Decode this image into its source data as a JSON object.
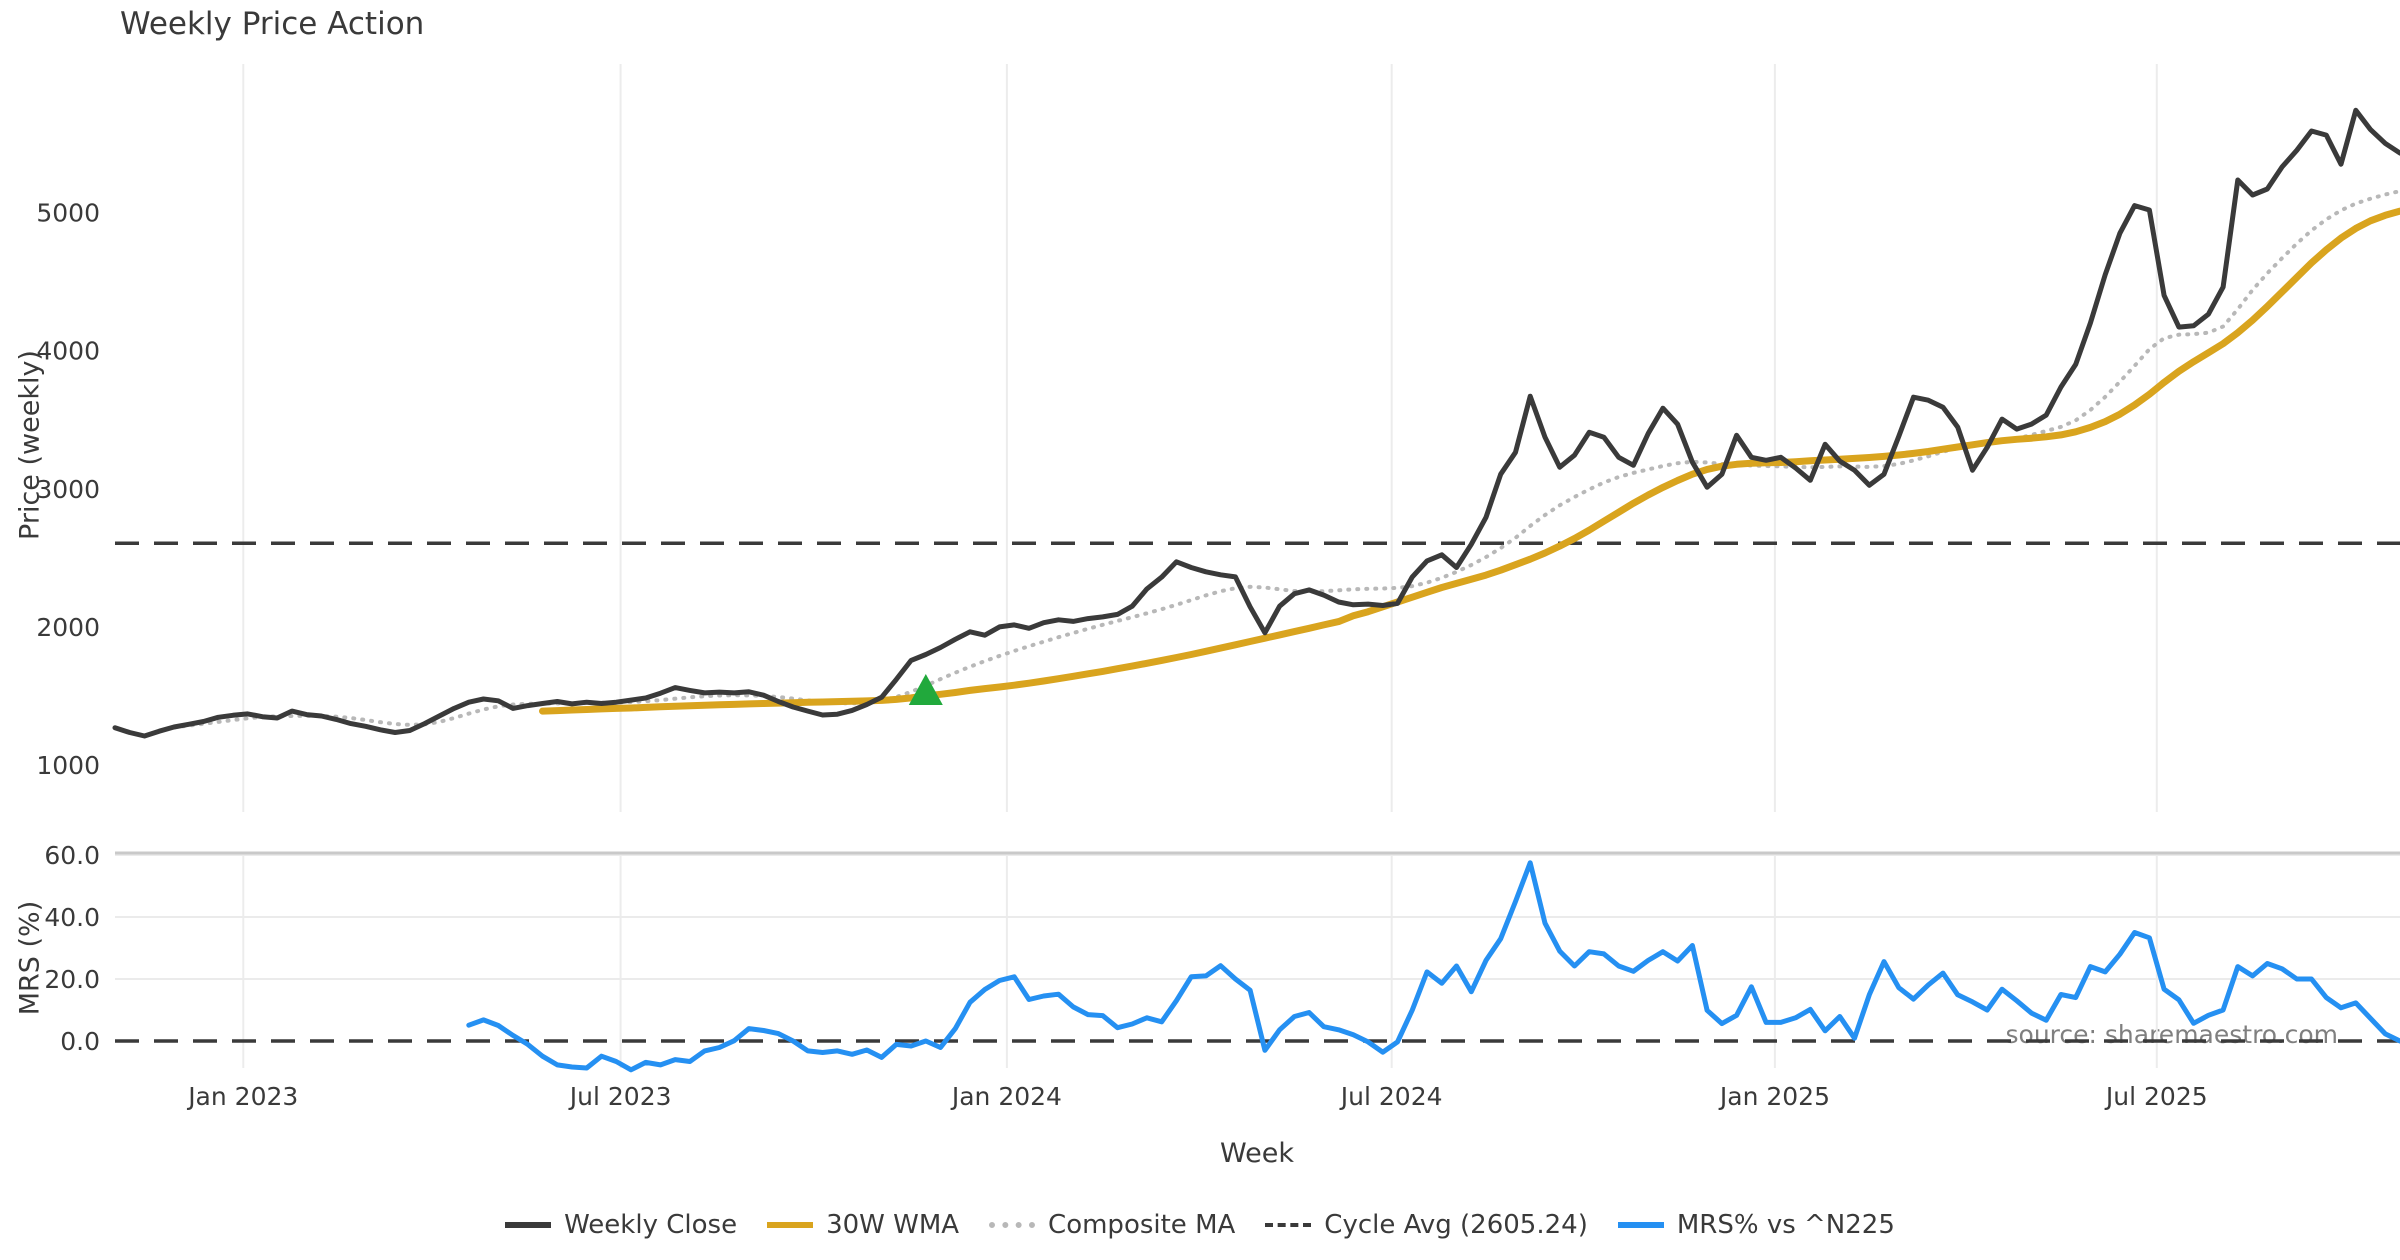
{
  "source_note": "source: sharemaestro.com",
  "legend": {
    "items": [
      {
        "label": "Weekly Close",
        "color": "#3a3a3a",
        "style": "solid"
      },
      {
        "label": "30W WMA",
        "color": "#d9a41e",
        "style": "solid"
      },
      {
        "label": "Composite MA",
        "color": "#b8b8b8",
        "style": "dotted"
      },
      {
        "label": "Cycle Avg (2605.24)",
        "color": "#3a3a3a",
        "style": "dashed"
      },
      {
        "label": "MRS% vs ^N225",
        "color": "#2590f2",
        "style": "solid"
      }
    ]
  },
  "chart_data": {
    "type": "line",
    "title": "Weekly Price Action",
    "x_label": "Week",
    "n_weeks": 156,
    "x_ticks": [
      {
        "label": "Jan 2023",
        "week": 8.7
      },
      {
        "label": "Jul 2023",
        "week": 34.3
      },
      {
        "label": "Jan 2024",
        "week": 60.5
      },
      {
        "label": "Jul 2024",
        "week": 86.6
      },
      {
        "label": "Jan 2025",
        "week": 112.6
      },
      {
        "label": "Jul 2025",
        "week": 138.5
      }
    ],
    "panels": [
      {
        "name": "price",
        "y_label": "Price (weekly)",
        "y_ticks": [
          1000,
          2000,
          3000,
          4000,
          5000
        ],
        "ylim": [
          950,
          5900
        ],
        "grid": "vertical",
        "hline": {
          "label": "Cycle Avg (2605.24)",
          "value": 2605.24,
          "style": "dashed",
          "color": "#3a3a3a"
        },
        "marker": {
          "shape": "triangle-up",
          "color": "#21a93c",
          "week": 55,
          "value": 1500
        },
        "series": [
          {
            "name": "Composite MA",
            "color": "#b8b8b8",
            "style": "dotted",
            "width": 4,
            "values": [
              null,
              null,
              null,
              null,
              1272,
              1285,
              1298,
              1312,
              1325,
              1338,
              1348,
              1353,
              1355,
              1356,
              1355,
              1350,
              1340,
              1326,
              1310,
              1297,
              1290,
              1295,
              1312,
              1340,
              1372,
              1402,
              1425,
              1438,
              1443,
              1445,
              1446,
              1447,
              1448,
              1450,
              1452,
              1456,
              1462,
              1470,
              1480,
              1490,
              1498,
              1503,
              1505,
              1504,
              1500,
              1492,
              1481,
              1468,
              1456,
              1448,
              1446,
              1452,
              1466,
              1492,
              1530,
              1575,
              1622,
              1668,
              1712,
              1752,
              1790,
              1826,
              1860,
              1893,
              1925,
              1956,
              1986,
              2015,
              2043,
              2070,
              2098,
              2128,
              2160,
              2194,
              2228,
              2258,
              2280,
              2290,
              2285,
              2272,
              2260,
              2255,
              2258,
              2265,
              2272,
              2276,
              2278,
              2282,
              2295,
              2320,
              2355,
              2398,
              2448,
              2505,
              2570,
              2645,
              2730,
              2810,
              2880,
              2940,
              2995,
              3045,
              3085,
              3115,
              3140,
              3165,
              3185,
              3195,
              3190,
              3180,
              3172,
              3168,
              3165,
              3162,
              3158,
              3155,
              3158,
              3162,
              3160,
              3158,
              3165,
              3180,
              3205,
              3235,
              3268,
              3295,
              3310,
              3322,
              3340,
              3362,
              3390,
              3418,
              3448,
              3495,
              3570,
              3665,
              3775,
              3890,
              4010,
              4090,
              4115,
              4120,
              4130,
              4175,
              4300,
              4440,
              4560,
              4670,
              4775,
              4870,
              4950,
              5015,
              5065,
              5100,
              5130,
              5155
            ]
          },
          {
            "name": "30W WMA",
            "color": "#d9a41e",
            "style": "solid",
            "width": 7,
            "values": [
              null,
              null,
              null,
              null,
              null,
              null,
              null,
              null,
              null,
              null,
              null,
              null,
              null,
              null,
              null,
              null,
              null,
              null,
              null,
              null,
              null,
              null,
              null,
              null,
              null,
              null,
              null,
              null,
              null,
              1390,
              1394,
              1398,
              1402,
              1406,
              1410,
              1413,
              1417,
              1421,
              1425,
              1429,
              1432,
              1436,
              1439,
              1442,
              1445,
              1448,
              1451,
              1454,
              1456,
              1459,
              1461,
              1464,
              1468,
              1475,
              1486,
              1500,
              1512,
              1525,
              1540,
              1553,
              1565,
              1578,
              1592,
              1608,
              1625,
              1642,
              1660,
              1678,
              1697,
              1716,
              1736,
              1757,
              1778,
              1800,
              1823,
              1846,
              1870,
              1894,
              1918,
              1942,
              1966,
              1990,
              2014,
              2038,
              2080,
              2110,
              2145,
              2180,
              2215,
              2250,
              2285,
              2315,
              2345,
              2375,
              2410,
              2450,
              2490,
              2535,
              2585,
              2640,
              2700,
              2765,
              2830,
              2895,
              2955,
              3010,
              3060,
              3105,
              3140,
              3163,
              3177,
              3184,
              3188,
              3190,
              3196,
              3202,
              3208,
              3214,
              3220,
              3226,
              3234,
              3244,
              3256,
              3270,
              3286,
              3302,
              3318,
              3334,
              3348,
              3358,
              3366,
              3376,
              3390,
              3412,
              3444,
              3486,
              3540,
              3606,
              3684,
              3770,
              3850,
              3920,
              3985,
              4050,
              4130,
              4220,
              4320,
              4425,
              4530,
              4635,
              4730,
              4815,
              4885,
              4940,
              4980,
              5010
            ]
          },
          {
            "name": "Weekly Close",
            "color": "#3a3a3a",
            "style": "solid",
            "width": 5,
            "values": [
              1270,
              1235,
              1210,
              1245,
              1275,
              1295,
              1315,
              1345,
              1360,
              1370,
              1350,
              1340,
              1390,
              1365,
              1355,
              1330,
              1300,
              1280,
              1255,
              1235,
              1250,
              1300,
              1355,
              1410,
              1455,
              1478,
              1465,
              1410,
              1430,
              1445,
              1460,
              1442,
              1455,
              1445,
              1455,
              1470,
              1485,
              1520,
              1560,
              1540,
              1522,
              1528,
              1522,
              1530,
              1505,
              1460,
              1420,
              1390,
              1362,
              1368,
              1395,
              1438,
              1490,
              1620,
              1757,
              1800,
              1851,
              1910,
              1964,
              1940,
              2000,
              2014,
              1990,
              2030,
              2051,
              2040,
              2060,
              2072,
              2090,
              2150,
              2275,
              2360,
              2471,
              2430,
              2399,
              2377,
              2362,
              2145,
              1957,
              2150,
              2240,
              2268,
              2230,
              2180,
              2160,
              2165,
              2155,
              2170,
              2362,
              2478,
              2522,
              2430,
              2598,
              2793,
              3105,
              3264,
              3670,
              3373,
              3156,
              3243,
              3409,
              3373,
              3228,
              3170,
              3400,
              3583,
              3467,
              3192,
              3011,
              3105,
              3387,
              3228,
              3206,
              3228,
              3150,
              3061,
              3322,
              3200,
              3134,
              3025,
              3105,
              3380,
              3663,
              3641,
              3590,
              3446,
              3134,
              3300,
              3504,
              3432,
              3468,
              3533,
              3736,
              3900,
              4200,
              4550,
              4850,
              5050,
              5018,
              4400,
              4170,
              4180,
              4264,
              4460,
              5235,
              5127,
              5170,
              5330,
              5450,
              5590,
              5560,
              5350,
              5740,
              5600,
              5500,
              5430
            ]
          }
        ]
      },
      {
        "name": "mrs",
        "y_label": "MRS (%)",
        "y_ticks": [
          0.0,
          20.0,
          40.0,
          60.0
        ],
        "ylim": [
          -12,
          62
        ],
        "grid": "both",
        "hline": {
          "value": 0.0,
          "style": "dashed",
          "color": "#3a3a3a"
        },
        "series": [
          {
            "name": "MRS% vs ^N225",
            "color": "#2590f2",
            "style": "solid",
            "width": 5,
            "values": [
              null,
              null,
              null,
              null,
              null,
              null,
              null,
              null,
              null,
              null,
              null,
              null,
              null,
              null,
              null,
              null,
              null,
              null,
              null,
              null,
              null,
              null,
              null,
              null,
              5.1,
              6.8,
              5.0,
              1.8,
              -1.1,
              -4.9,
              -7.7,
              -8.4,
              -8.7,
              -4.9,
              -6.6,
              -9.3,
              -6.9,
              -7.7,
              -6.0,
              -6.6,
              -3.2,
              -2.1,
              0.1,
              4.0,
              3.4,
              2.4,
              0.0,
              -3.2,
              -3.7,
              -3.2,
              -4.3,
              -2.9,
              -5.3,
              -1.1,
              -1.6,
              0.0,
              -2.1,
              4.0,
              12.5,
              16.6,
              19.5,
              20.7,
              13.4,
              14.5,
              15.1,
              11.0,
              8.5,
              8.2,
              4.3,
              5.5,
              7.5,
              6.2,
              13.0,
              20.7,
              21.0,
              24.3,
              20.0,
              16.4,
              -3.0,
              3.6,
              7.9,
              9.2,
              4.6,
              3.6,
              2.0,
              -0.3,
              -3.6,
              -0.3,
              10.0,
              22.3,
              18.6,
              24.2,
              15.9,
              26.0,
              33.0,
              45.0,
              57.5,
              38.0,
              29.0,
              24.2,
              28.8,
              28.1,
              24.2,
              22.5,
              26.0,
              28.8,
              25.8,
              30.8,
              9.9,
              5.6,
              8.3,
              17.5,
              6.0,
              6.0,
              7.5,
              10.2,
              3.3,
              7.9,
              0.9,
              14.9,
              25.6,
              17.2,
              13.5,
              18.1,
              21.9,
              14.9,
              12.6,
              10.0,
              16.7,
              13.0,
              9.0,
              6.7,
              15.0,
              14.0,
              24.0,
              22.3,
              28.0,
              35.0,
              33.3,
              16.7,
              13.3,
              5.7,
              8.3,
              10.0,
              24.0,
              21.0,
              25.0,
              23.3,
              20.0,
              20.0,
              14.0,
              10.7,
              12.3,
              7.3,
              2.3,
              0.0
            ]
          }
        ]
      }
    ]
  }
}
